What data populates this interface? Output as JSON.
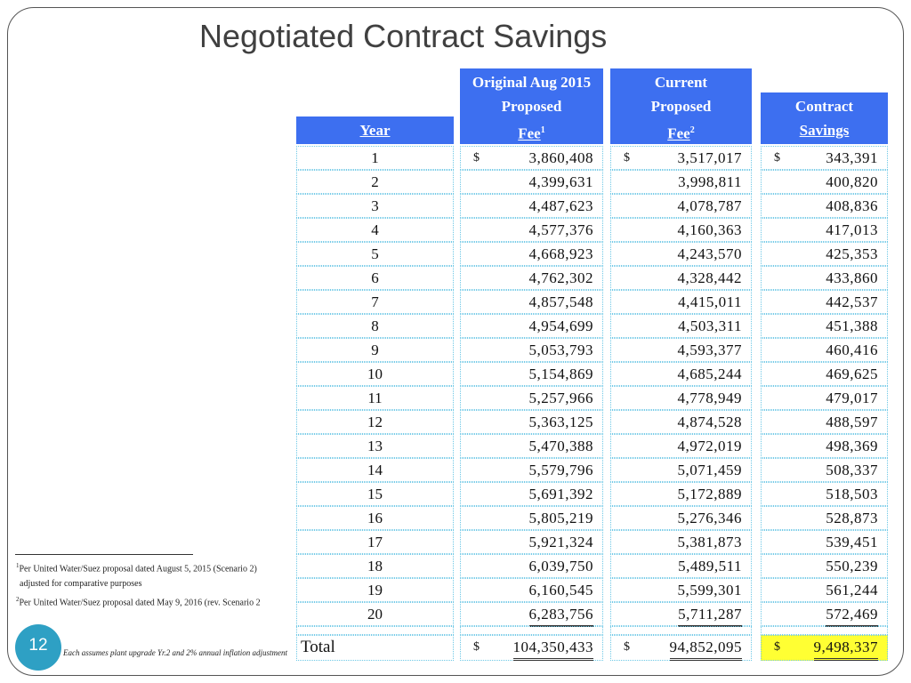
{
  "title": "Negotiated Contract Savings",
  "headers": {
    "year": "Year",
    "fee1_l1": "Original Aug 2015",
    "fee1_l2": "Proposed",
    "fee1_l3": "Fee",
    "fee1_sup": "1",
    "fee2_l1": "Current",
    "fee2_l2": "Proposed",
    "fee2_l3": "Fee",
    "fee2_sup": "2",
    "sv_l1": "Contract",
    "sv_l2": "Savings"
  },
  "currency": "$",
  "rows": [
    {
      "year": "1",
      "fee1": "3,860,408",
      "fee2": "3,517,017",
      "savings": "343,391"
    },
    {
      "year": "2",
      "fee1": "4,399,631",
      "fee2": "3,998,811",
      "savings": "400,820"
    },
    {
      "year": "3",
      "fee1": "4,487,623",
      "fee2": "4,078,787",
      "savings": "408,836"
    },
    {
      "year": "4",
      "fee1": "4,577,376",
      "fee2": "4,160,363",
      "savings": "417,013"
    },
    {
      "year": "5",
      "fee1": "4,668,923",
      "fee2": "4,243,570",
      "savings": "425,353"
    },
    {
      "year": "6",
      "fee1": "4,762,302",
      "fee2": "4,328,442",
      "savings": "433,860"
    },
    {
      "year": "7",
      "fee1": "4,857,548",
      "fee2": "4,415,011",
      "savings": "442,537"
    },
    {
      "year": "8",
      "fee1": "4,954,699",
      "fee2": "4,503,311",
      "savings": "451,388"
    },
    {
      "year": "9",
      "fee1": "5,053,793",
      "fee2": "4,593,377",
      "savings": "460,416"
    },
    {
      "year": "10",
      "fee1": "5,154,869",
      "fee2": "4,685,244",
      "savings": "469,625"
    },
    {
      "year": "11",
      "fee1": "5,257,966",
      "fee2": "4,778,949",
      "savings": "479,017"
    },
    {
      "year": "12",
      "fee1": "5,363,125",
      "fee2": "4,874,528",
      "savings": "488,597"
    },
    {
      "year": "13",
      "fee1": "5,470,388",
      "fee2": "4,972,019",
      "savings": "498,369"
    },
    {
      "year": "14",
      "fee1": "5,579,796",
      "fee2": "5,071,459",
      "savings": "508,337"
    },
    {
      "year": "15",
      "fee1": "5,691,392",
      "fee2": "5,172,889",
      "savings": "518,503"
    },
    {
      "year": "16",
      "fee1": "5,805,219",
      "fee2": "5,276,346",
      "savings": "528,873"
    },
    {
      "year": "17",
      "fee1": "5,921,324",
      "fee2": "5,381,873",
      "savings": "539,451"
    },
    {
      "year": "18",
      "fee1": "6,039,750",
      "fee2": "5,489,511",
      "savings": "550,239"
    },
    {
      "year": "19",
      "fee1": "6,160,545",
      "fee2": "5,599,301",
      "savings": "561,244"
    },
    {
      "year": "20",
      "fee1": "6,283,756",
      "fee2": "5,711,287",
      "savings": "572,469"
    }
  ],
  "total": {
    "label": "Total",
    "fee1": "104,350,433",
    "fee2": "94,852,095",
    "savings": "9,498,337",
    "highlight": "#ffff33"
  },
  "footnotes": {
    "n1_sup": "1",
    "n1_l1": "Per United Water/Suez proposal dated August 5, 2015 (Scenario 2)",
    "n1_l2": "adjusted for comparative purposes",
    "n2_sup": "2",
    "n2": "Per United Water/Suez proposal dated May 9, 2016 (rev. Scenario 2",
    "note": "Each assumes plant upgrade Yr.2 and 2% annual inflation adjustment"
  },
  "page_number": "12",
  "colors": {
    "header": "#3d6ff0",
    "grid": "#6ec8e6",
    "badge": "#2ea0c4"
  }
}
